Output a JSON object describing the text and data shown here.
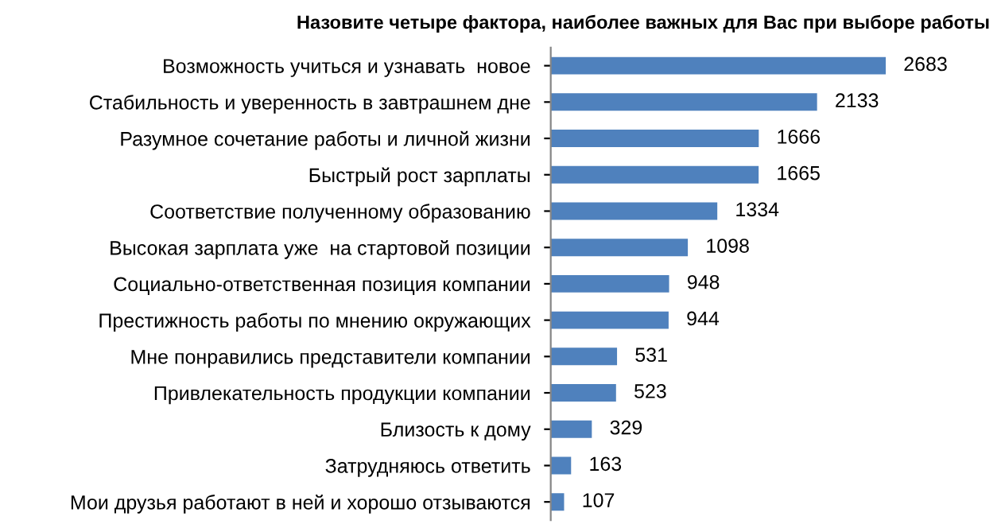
{
  "chart_data": {
    "type": "bar",
    "orientation": "horizontal",
    "title": "Назовите четыре фактора, наиболее важных для Вас при выборе работы",
    "categories": [
      "Возможность учиться и узнавать  новое",
      "Стабильность и уверенность в завтрашнем дне",
      "Разумное сочетание работы и личной жизни",
      "Быстрый рост зарплаты",
      "Соответствие полученному образованию",
      "Высокая зарплата уже  на стартовой позиции",
      "Социально-ответственная позиция компании",
      "Престижность работы по мнению окружающих",
      "Мне понравились представители компании",
      "Привлекательность продукции компании",
      "Близость к дому",
      "Затрудняюсь ответить",
      "Мои друзья работают в ней и хорошо отзываются"
    ],
    "values": [
      2683,
      2133,
      1666,
      1665,
      1334,
      1098,
      948,
      944,
      531,
      523,
      329,
      163,
      107
    ],
    "color": "#4f81bd",
    "data_labels": true,
    "grid": false,
    "legend": false
  }
}
